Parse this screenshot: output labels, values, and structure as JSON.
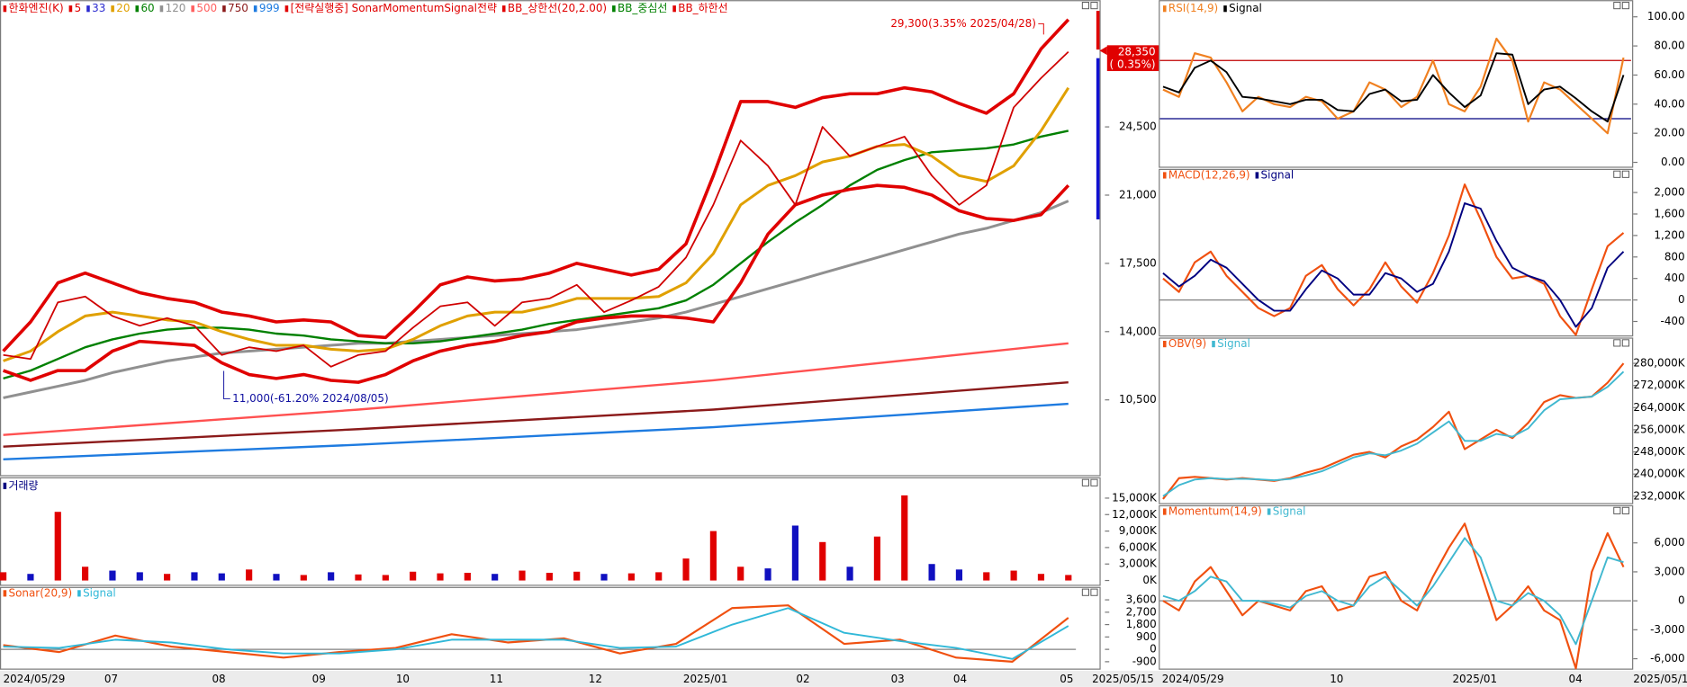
{
  "main": {
    "legend": [
      {
        "text": "한화엔진(K)",
        "color": "#e00000"
      },
      {
        "text": "5",
        "color": "#e00000"
      },
      {
        "text": "33",
        "color": "#2b2bd0"
      },
      {
        "text": "20",
        "color": "#e0a000"
      },
      {
        "text": "60",
        "color": "#008000"
      },
      {
        "text": "120",
        "color": "#909090"
      },
      {
        "text": "500",
        "color": "#ff6060"
      },
      {
        "text": "750",
        "color": "#8b1a1a"
      },
      {
        "text": "999",
        "color": "#1e7be0"
      },
      {
        "text": "[전략실행중] SonarMomentumSignal전략",
        "color": "#e00000"
      },
      {
        "text": "BB_상한선(20,2.00)",
        "color": "#e00000"
      },
      {
        "text": "BB_중심선",
        "color": "#008000"
      },
      {
        "text": "BB_하한선",
        "color": "#e00000"
      }
    ],
    "ylim": [
      6750,
      31000
    ],
    "yticks": [
      {
        "value": 10500,
        "label": "10,500"
      },
      {
        "value": 14000,
        "label": "14,000"
      },
      {
        "value": 17500,
        "label": "17,500"
      },
      {
        "value": 21000,
        "label": "21,000"
      },
      {
        "value": 24500,
        "label": "24,500"
      }
    ],
    "high_label": "29,300(3.35% 2025/04/28)",
    "low_label": "11,000(-61.20% 2024/08/05)",
    "price_label": "28,350",
    "change_label": "( 0.35%)",
    "series": [
      {
        "color": "#909090",
        "width": 2.5,
        "values": [
          10600,
          10900,
          11200,
          11500,
          11900,
          12200,
          12500,
          12700,
          12900,
          13000,
          13100,
          13200,
          13300,
          13400,
          13400,
          13500,
          13600,
          13700,
          13800,
          13900,
          14000,
          14100,
          14300,
          14500,
          14700,
          15000,
          15400,
          15800,
          16200,
          16600,
          17000,
          17400,
          17800,
          18200,
          18600,
          19000,
          19300,
          19700,
          20100,
          20700
        ]
      },
      {
        "color": "#008000",
        "width": 2,
        "values": [
          11600,
          12000,
          12600,
          13200,
          13600,
          13900,
          14100,
          14200,
          14200,
          14100,
          13900,
          13800,
          13600,
          13500,
          13400,
          13400,
          13500,
          13700,
          13900,
          14100,
          14400,
          14600,
          14800,
          15000,
          15200,
          15600,
          16400,
          17500,
          18600,
          19600,
          20500,
          21500,
          22300,
          22800,
          23200,
          23300,
          23400,
          23600,
          24000,
          24300
        ]
      },
      {
        "color": "#e0a000",
        "width": 2.5,
        "values": [
          12500,
          13000,
          14000,
          14800,
          15000,
          14800,
          14600,
          14500,
          14000,
          13600,
          13300,
          13300,
          13100,
          13000,
          13100,
          13600,
          14300,
          14800,
          15000,
          15000,
          15300,
          15700,
          15700,
          15700,
          15800,
          16500,
          18000,
          20500,
          21500,
          22000,
          22700,
          23000,
          23500,
          23600,
          23000,
          22000,
          21700,
          22500,
          24300,
          26500
        ]
      },
      {
        "color": "#e00000",
        "width": 3,
        "values": [
          13000,
          14500,
          16500,
          17000,
          16500,
          16000,
          15700,
          15500,
          15000,
          14800,
          14500,
          14600,
          14500,
          13800,
          13700,
          15000,
          16400,
          16800,
          16600,
          16700,
          17000,
          17500,
          17200,
          16900,
          17200,
          18500,
          22000,
          25800,
          25800,
          25500,
          26000,
          26200,
          26200,
          26500,
          26300,
          25700,
          25200,
          26200,
          28500,
          30000
        ]
      },
      {
        "color": "#e00000",
        "width": 3,
        "values": [
          12000,
          11500,
          12000,
          12000,
          13000,
          13500,
          13400,
          13300,
          12400,
          11800,
          11600,
          11800,
          11500,
          11400,
          11800,
          12500,
          13000,
          13300,
          13500,
          13800,
          14000,
          14500,
          14700,
          14800,
          14800,
          14700,
          14500,
          16500,
          19000,
          20500,
          21000,
          21300,
          21500,
          21400,
          21000,
          20200,
          19800,
          19700,
          20000,
          21500
        ]
      },
      {
        "color": "#d00000",
        "width": 1.5,
        "values": [
          12800,
          12600,
          15500,
          15800,
          14800,
          14300,
          14700,
          14300,
          12800,
          13200,
          13000,
          13300,
          12200,
          12800,
          13000,
          14200,
          15300,
          15500,
          14300,
          15500,
          15700,
          16400,
          15000,
          15600,
          16300,
          17800,
          20500,
          23800,
          22500,
          20500,
          24500,
          23000,
          23500,
          24000,
          22000,
          20500,
          21500,
          25500,
          27000,
          28350
        ]
      }
    ],
    "long_series": [
      {
        "color": "#ff5050",
        "x": [
          0,
          13,
          26,
          39
        ],
        "values": [
          8700,
          10000,
          11500,
          13400
        ]
      },
      {
        "color": "#8b1a1a",
        "x": [
          0,
          13,
          26,
          39
        ],
        "values": [
          8100,
          9000,
          10000,
          11400
        ]
      },
      {
        "color": "#1e7be0",
        "x": [
          0,
          13,
          26,
          39
        ],
        "values": [
          7450,
          8200,
          9100,
          10300
        ]
      }
    ]
  },
  "volume": {
    "legend": [
      {
        "text": "거래량",
        "color": "#000080"
      }
    ],
    "ylim": [
      -780,
      18400
    ],
    "yticks": [
      {
        "value": 0,
        "label": "0K"
      },
      {
        "value": 3000,
        "label": "3,000K"
      },
      {
        "value": 6000,
        "label": "6,000K"
      },
      {
        "value": 9000,
        "label": "9,000K"
      },
      {
        "value": 12000,
        "label": "12,000K"
      },
      {
        "value": 15000,
        "label": "15,000K"
      }
    ],
    "up_color": "#e00000",
    "down_color": "#1010c0",
    "values": [
      1500,
      1200,
      12500,
      2500,
      1800,
      1500,
      1200,
      1500,
      1300,
      2000,
      1200,
      1000,
      1500,
      1100,
      1000,
      1600,
      1300,
      1400,
      1200,
      1800,
      1400,
      1600,
      1200,
      1300,
      1500,
      4000,
      9000,
      2500,
      2200,
      10000,
      7000,
      2500,
      8000,
      15500,
      3000,
      2000,
      1500,
      1800,
      1200,
      1000
    ]
  },
  "sonar": {
    "ylim": [
      -1400,
      4540
    ],
    "yticks": [
      -900,
      0,
      900,
      {
        "value": 1800,
        "label": "1,800"
      },
      {
        "value": 2700,
        "label": "2,700"
      },
      {
        "value": 3600,
        "label": "3,600"
      }
    ],
    "ref_lines": [
      {
        "value": 0,
        "color": "#808080"
      }
    ],
    "series": [
      {
        "name": "Sonar(20,9)",
        "color": "#f05010",
        "values": [
          300,
          -200,
          1000,
          200,
          -200,
          -600,
          -200,
          100,
          1100,
          500,
          800,
          -300,
          400,
          3000,
          3200,
          400,
          700,
          -600,
          -900,
          2300
        ]
      },
      {
        "name": "Signal",
        "color": "#30b8d8",
        "values": [
          200,
          100,
          700,
          500,
          0,
          -300,
          -300,
          0,
          700,
          700,
          700,
          100,
          200,
          1800,
          3000,
          1200,
          600,
          100,
          -700,
          1700
        ]
      }
    ]
  },
  "rsi": {
    "ylim": [
      -3,
      110
    ],
    "yticks": [
      {
        "value": 0,
        "label": "0.00"
      },
      {
        "value": 20,
        "label": "20.00"
      },
      {
        "value": 40,
        "label": "40.00"
      },
      {
        "value": 60,
        "label": "60.00"
      },
      {
        "value": 80,
        "label": "80.00"
      },
      {
        "value": 100,
        "label": "100.00"
      }
    ],
    "ref_lines": [
      {
        "value": 70,
        "color": "#c00000"
      },
      {
        "value": 30,
        "color": "#000080"
      }
    ],
    "series": [
      {
        "name": "RSI(14,9)",
        "color": "#f08020",
        "values": [
          50,
          45,
          75,
          72,
          55,
          35,
          45,
          40,
          38,
          45,
          42,
          30,
          35,
          55,
          50,
          38,
          45,
          70,
          40,
          35,
          52,
          85,
          70,
          28,
          55,
          50,
          40,
          30,
          20,
          72
        ]
      },
      {
        "name": "Signal",
        "color": "#000000",
        "values": [
          52,
          48,
          65,
          70,
          62,
          45,
          44,
          42,
          40,
          43,
          43,
          36,
          35,
          47,
          50,
          42,
          43,
          60,
          48,
          38,
          46,
          75,
          74,
          40,
          50,
          52,
          44,
          35,
          28,
          60
        ]
      }
    ]
  },
  "macd": {
    "ylim": [
      -660,
      2440
    ],
    "yticks": [
      -400,
      0,
      400,
      800,
      {
        "value": 1200,
        "label": "1,200"
      },
      {
        "value": 1600,
        "label": "1,600"
      },
      {
        "value": 2000,
        "label": "2,000"
      }
    ],
    "ref_lines": [
      {
        "value": 0,
        "color": "#808080"
      }
    ],
    "series": [
      {
        "name": "MACD(12,26,9)",
        "color": "#f05010",
        "values": [
          400,
          150,
          700,
          900,
          450,
          150,
          -150,
          -300,
          -150,
          450,
          650,
          200,
          -100,
          200,
          700,
          250,
          -50,
          500,
          1200,
          2150,
          1500,
          800,
          400,
          450,
          300,
          -300,
          -650,
          200,
          1000,
          1250
        ]
      },
      {
        "name": "Signal",
        "color": "#000080",
        "values": [
          500,
          250,
          450,
          750,
          600,
          300,
          0,
          -200,
          -200,
          200,
          550,
          400,
          100,
          100,
          500,
          400,
          150,
          300,
          900,
          1800,
          1700,
          1100,
          600,
          450,
          350,
          0,
          -500,
          -150,
          600,
          900
        ]
      }
    ]
  },
  "obv": {
    "ylim": [
      229900,
      289300
    ],
    "yticks": [
      {
        "value": 232000,
        "label": "232,000K"
      },
      {
        "value": 240000,
        "label": "240,000K"
      },
      {
        "value": 248000,
        "label": "248,000K"
      },
      {
        "value": 256000,
        "label": "256,000K"
      },
      {
        "value": 264000,
        "label": "264,000K"
      },
      {
        "value": 272000,
        "label": "272,000K"
      },
      {
        "value": 280000,
        "label": "280,000K"
      }
    ],
    "ref_lines": [],
    "series": [
      {
        "name": "OBV(9)",
        "color": "#f05010",
        "values": [
          231000,
          238500,
          239000,
          238500,
          238000,
          238500,
          238000,
          237500,
          238500,
          240500,
          242000,
          244500,
          247000,
          248000,
          246000,
          250000,
          252500,
          257000,
          262500,
          249000,
          252500,
          256000,
          253000,
          258500,
          266000,
          268500,
          267500,
          268000,
          273000,
          280000
        ]
      },
      {
        "name": "Signal",
        "color": "#40b8d0",
        "values": [
          232000,
          236000,
          238000,
          238500,
          238200,
          238300,
          238100,
          237800,
          238200,
          239500,
          241000,
          243500,
          246000,
          247500,
          246800,
          248500,
          251000,
          255000,
          259000,
          252000,
          252000,
          254500,
          253500,
          256500,
          263000,
          267000,
          267500,
          268000,
          271500,
          277000
        ]
      }
    ]
  },
  "momentum": {
    "ylim": [
      -6800,
      9900
    ],
    "yticks": [
      {
        "value": -6000,
        "label": "-6,000"
      },
      {
        "value": -3000,
        "label": "-3,000"
      },
      0,
      {
        "value": 3000,
        "label": "3,000"
      },
      {
        "value": 6000,
        "label": "6,000"
      }
    ],
    "ref_lines": [
      {
        "value": 0,
        "color": "#808080"
      }
    ],
    "series": [
      {
        "name": "Momentum(14,9)",
        "color": "#f05010",
        "values": [
          0,
          -1000,
          2000,
          3500,
          1000,
          -1500,
          0,
          -500,
          -1000,
          1000,
          1500,
          -1000,
          -500,
          2500,
          3000,
          0,
          -1000,
          2500,
          5500,
          8000,
          3000,
          -2000,
          -500,
          1500,
          -1000,
          -2000,
          -7000,
          3000,
          7000,
          3500
        ]
      },
      {
        "name": "Signal",
        "color": "#40b8d0",
        "values": [
          500,
          0,
          1000,
          2500,
          2000,
          0,
          0,
          -300,
          -700,
          500,
          1000,
          0,
          -500,
          1500,
          2500,
          1000,
          -500,
          1500,
          4000,
          6500,
          4500,
          0,
          -500,
          800,
          0,
          -1500,
          -4500,
          0,
          4500,
          4000
        ]
      }
    ]
  },
  "xaxis_left": [
    "2024/05/29",
    "07",
    "08",
    "09",
    "10",
    "11",
    "12",
    "2025/01",
    "02",
    "03",
    "04",
    "05",
    "2025/05/15"
  ],
  "xaxis_right": [
    "2024/05/29",
    "10",
    "2025/01",
    "04",
    "2025/05/15"
  ]
}
